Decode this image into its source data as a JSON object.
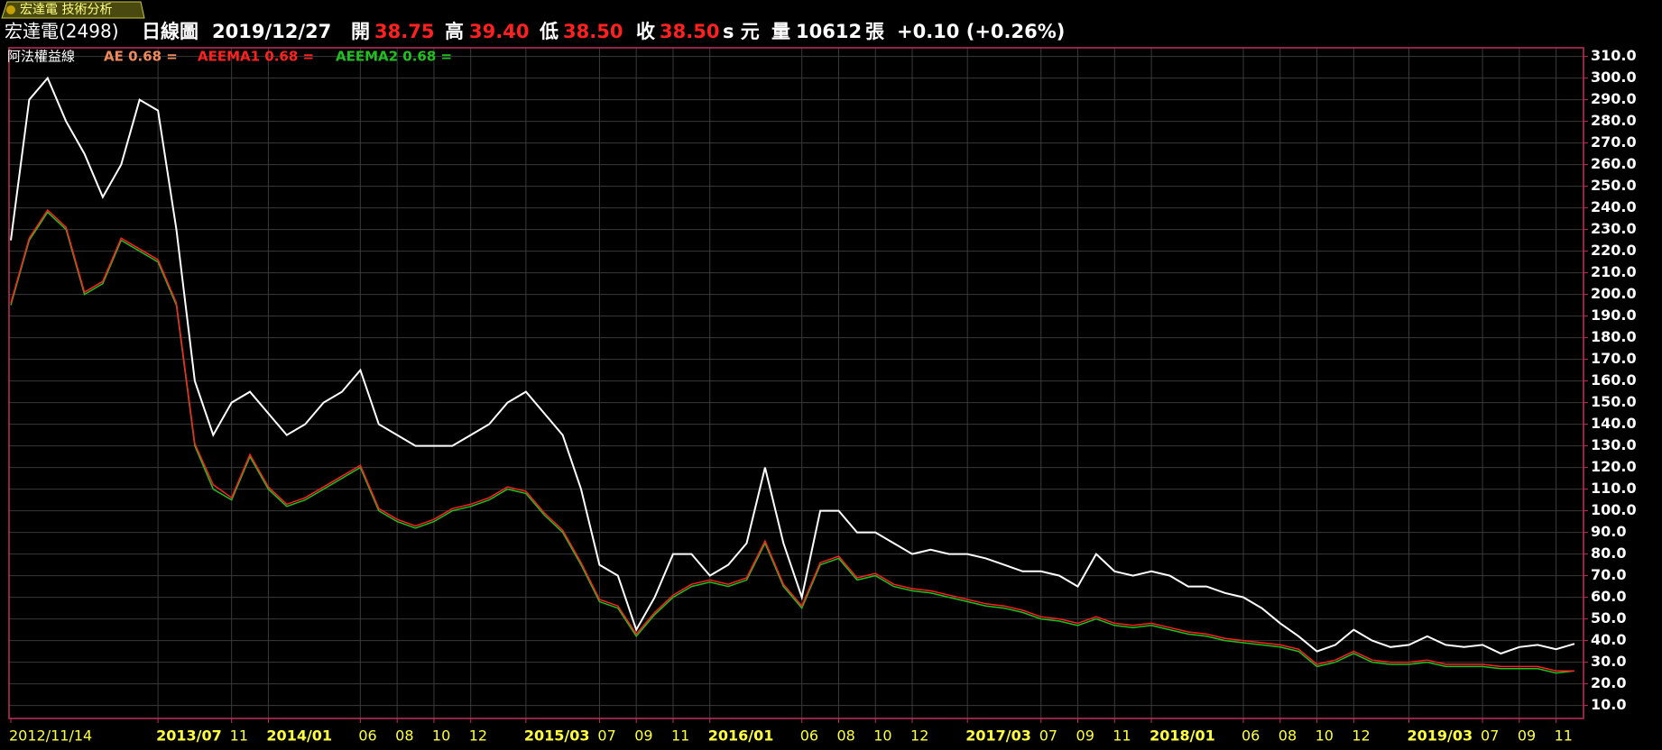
{
  "tab": "宏達電 技術分析",
  "header": {
    "symbol": "宏達電(2498)",
    "period": "日線圖",
    "date": "2019/12/27",
    "open_label": "開",
    "open": "38.75",
    "high_label": "高",
    "high": "39.40",
    "low_label": "低",
    "low": "38.50",
    "close_label": "收",
    "close": "38.50",
    "unit": "s 元",
    "volume_label": "量",
    "volume": "10612",
    "volume_unit": "張",
    "change": "+0.10 (+0.26%)"
  },
  "chart_data": {
    "type": "line",
    "title": "阿法權益線",
    "x": [
      "2012/11",
      "2012/12",
      "2013/01",
      "2013/02",
      "2013/03",
      "2013/04",
      "2013/05",
      "2013/06",
      "2013/07",
      "2013/08",
      "2013/09",
      "2013/10",
      "2013/11",
      "2013/12",
      "2014/01",
      "2014/02",
      "2014/03",
      "2014/04",
      "2014/05",
      "2014/06",
      "2014/07",
      "2014/08",
      "2014/09",
      "2014/10",
      "2014/11",
      "2014/12",
      "2015/01",
      "2015/02",
      "2015/03",
      "2015/04",
      "2015/05",
      "2015/06",
      "2015/07",
      "2015/08",
      "2015/09",
      "2015/10",
      "2015/11",
      "2015/12",
      "2016/01",
      "2016/02",
      "2016/03",
      "2016/04",
      "2016/05",
      "2016/06",
      "2016/07",
      "2016/08",
      "2016/09",
      "2016/10",
      "2016/11",
      "2016/12",
      "2017/01",
      "2017/02",
      "2017/03",
      "2017/04",
      "2017/05",
      "2017/06",
      "2017/07",
      "2017/08",
      "2017/09",
      "2017/10",
      "2017/11",
      "2017/12",
      "2018/01",
      "2018/02",
      "2018/03",
      "2018/04",
      "2018/05",
      "2018/06",
      "2018/07",
      "2018/08",
      "2018/09",
      "2018/10",
      "2018/11",
      "2018/12",
      "2019/01",
      "2019/02",
      "2019/03",
      "2019/04",
      "2019/05",
      "2019/06",
      "2019/07",
      "2019/08",
      "2019/09",
      "2019/10",
      "2019/11",
      "2019/12"
    ],
    "series": [
      {
        "name": "AE 0.68 =",
        "color": "#ffffff",
        "label_color": "#f08a5d",
        "values": [
          225,
          290,
          300,
          280,
          265,
          245,
          260,
          290,
          285,
          230,
          160,
          135,
          150,
          155,
          145,
          135,
          140,
          150,
          155,
          165,
          140,
          135,
          130,
          130,
          130,
          135,
          140,
          150,
          155,
          145,
          135,
          110,
          75,
          70,
          45,
          60,
          80,
          80,
          70,
          75,
          85,
          120,
          85,
          60,
          100,
          100,
          90,
          90,
          85,
          80,
          82,
          80,
          80,
          78,
          75,
          72,
          72,
          70,
          65,
          80,
          72,
          70,
          72,
          70,
          65,
          65,
          62,
          60,
          55,
          48,
          42,
          35,
          38,
          45,
          40,
          37,
          38,
          42,
          38,
          37,
          38,
          34,
          37,
          38,
          36,
          38.5
        ]
      },
      {
        "name": "AEEMA1 0.68 =",
        "color": "#ff2020",
        "values": [
          196,
          226,
          239,
          231,
          201,
          206,
          226,
          221,
          216,
          196,
          131,
          112,
          106,
          126,
          111,
          103,
          106,
          111,
          116,
          121,
          101,
          96,
          93,
          96,
          101,
          103,
          106,
          111,
          109,
          99,
          91,
          76,
          59,
          56,
          43,
          53,
          61,
          66,
          68,
          66,
          69,
          86,
          66,
          56,
          76,
          79,
          69,
          71,
          66,
          64,
          63,
          61,
          59,
          57,
          56,
          54,
          51,
          50,
          48,
          51,
          48,
          47,
          48,
          46,
          44,
          43,
          41,
          40,
          39,
          38,
          36,
          29,
          31,
          35,
          31,
          30,
          30,
          31,
          29,
          29,
          29,
          28,
          28,
          28,
          26,
          26
        ]
      },
      {
        "name": "AEEMA2 0.68 =",
        "color": "#20c020",
        "values": [
          195,
          225,
          238,
          230,
          200,
          205,
          225,
          220,
          215,
          195,
          130,
          110,
          105,
          125,
          110,
          102,
          105,
          110,
          115,
          120,
          100,
          95,
          92,
          95,
          100,
          102,
          105,
          110,
          108,
          98,
          90,
          75,
          58,
          55,
          42,
          52,
          60,
          65,
          67,
          65,
          68,
          85,
          65,
          55,
          75,
          78,
          68,
          70,
          65,
          63,
          62,
          60,
          58,
          56,
          55,
          53,
          50,
          49,
          47,
          50,
          47,
          46,
          47,
          45,
          43,
          42,
          40,
          39,
          38,
          37,
          35,
          28,
          30,
          34,
          30,
          29,
          29,
          30,
          28,
          28,
          28,
          27,
          27,
          27,
          25,
          26
        ]
      }
    ],
    "ylim": [
      4,
      314
    ],
    "yticks": [
      {
        "value": 10,
        "label": "10.0"
      },
      {
        "value": 20,
        "label": "20.0"
      },
      {
        "value": 30,
        "label": "30.0"
      },
      {
        "value": 40,
        "label": "40.0"
      },
      {
        "value": 50,
        "label": "50.0"
      },
      {
        "value": 60,
        "label": "60.0"
      },
      {
        "value": 70,
        "label": "70.0"
      },
      {
        "value": 80,
        "label": "80.0"
      },
      {
        "value": 90,
        "label": "90.0"
      },
      {
        "value": 100,
        "label": "100.0"
      },
      {
        "value": 110,
        "label": "110.0"
      },
      {
        "value": 120,
        "label": "120.0"
      },
      {
        "value": 130,
        "label": "130.0"
      },
      {
        "value": 140,
        "label": "140.0"
      },
      {
        "value": 150,
        "label": "150.0"
      },
      {
        "value": 160,
        "label": "160.0"
      },
      {
        "value": 170,
        "label": "170.0"
      },
      {
        "value": 180,
        "label": "180.0"
      },
      {
        "value": 190,
        "label": "190.0"
      },
      {
        "value": 200,
        "label": "200.0"
      },
      {
        "value": 210,
        "label": "210.0"
      },
      {
        "value": 220,
        "label": "220.0"
      },
      {
        "value": 230,
        "label": "230.0"
      },
      {
        "value": 240,
        "label": "240.0"
      },
      {
        "value": 250,
        "label": "250.0"
      },
      {
        "value": 260,
        "label": "260.0"
      },
      {
        "value": 270,
        "label": "270.0"
      },
      {
        "value": 280,
        "label": "280.0"
      },
      {
        "value": 290,
        "label": "290.0"
      },
      {
        "value": 300,
        "label": "300.0"
      },
      {
        "value": 310,
        "label": "310.0"
      }
    ],
    "xticks": [
      {
        "value": "2012/11",
        "label": "2012/11/14"
      },
      {
        "value": "2013/07",
        "label": "2013/07"
      },
      {
        "value": "2013/11",
        "label": "11"
      },
      {
        "value": "2014/01",
        "label": "2014/01"
      },
      {
        "value": "2014/06",
        "label": "06"
      },
      {
        "value": "2014/08",
        "label": "08"
      },
      {
        "value": "2014/10",
        "label": "10"
      },
      {
        "value": "2014/12",
        "label": "12"
      },
      {
        "value": "2015/03",
        "label": "2015/03"
      },
      {
        "value": "2015/07",
        "label": "07"
      },
      {
        "value": "2015/09",
        "label": "09"
      },
      {
        "value": "2015/11",
        "label": "11"
      },
      {
        "value": "2016/01",
        "label": "2016/01"
      },
      {
        "value": "2016/06",
        "label": "06"
      },
      {
        "value": "2016/08",
        "label": "08"
      },
      {
        "value": "2016/10",
        "label": "10"
      },
      {
        "value": "2016/12",
        "label": "12"
      },
      {
        "value": "2017/03",
        "label": "2017/03"
      },
      {
        "value": "2017/07",
        "label": "07"
      },
      {
        "value": "2017/09",
        "label": "09"
      },
      {
        "value": "2017/11",
        "label": "11"
      },
      {
        "value": "2018/01",
        "label": "2018/01"
      },
      {
        "value": "2018/06",
        "label": "06"
      },
      {
        "value": "2018/08",
        "label": "08"
      },
      {
        "value": "2018/10",
        "label": "10"
      },
      {
        "value": "2018/12",
        "label": "12"
      },
      {
        "value": "2019/03",
        "label": "2019/03"
      },
      {
        "value": "2019/07",
        "label": "07"
      },
      {
        "value": "2019/09",
        "label": "09"
      },
      {
        "value": "2019/11",
        "label": "11"
      }
    ],
    "grid": true
  }
}
